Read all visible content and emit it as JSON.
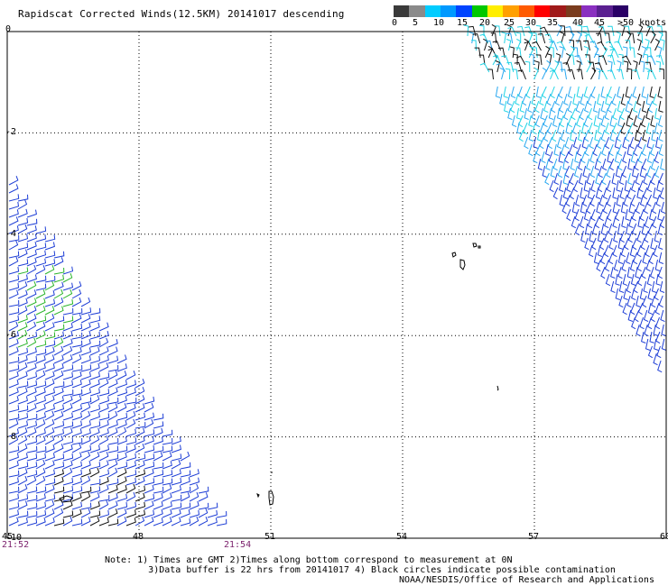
{
  "title": "Rapidscat Corrected Winds(12.5KM) 20141017 descending",
  "colorbar": {
    "labels": [
      "0",
      "5",
      "10",
      "15",
      "20",
      "25",
      "30",
      "35",
      "40",
      "45",
      ">50 knots"
    ],
    "colors": [
      "#3a3a3a",
      "#8a8a8a",
      "#00ccff",
      "#0099ff",
      "#0044ff",
      "#00c800",
      "#ffee00",
      "#ffa000",
      "#ff5a00",
      "#ff0000",
      "#a01a1a",
      "#7a3c1e",
      "#8a30c0",
      "#5a2090",
      "#2a0066"
    ]
  },
  "axes": {
    "lon_ticks": [
      "45",
      "48",
      "51",
      "54",
      "57",
      "60"
    ],
    "lat_ticks": [
      "0",
      "-2",
      "-4",
      "-6",
      "-8",
      "-10"
    ],
    "lon_range": [
      45,
      60
    ],
    "lat_range": [
      0,
      -10
    ],
    "grid": true
  },
  "times": {
    "left": "21:52",
    "mid": "21:54"
  },
  "notes": {
    "line1": "Note: 1) Times are GMT 2)Times along bottom correspond to measurement at 0N",
    "line2": "3)Data buffer is 22 hrs from 20141017 4) Black circles indicate possible contamination"
  },
  "credit": "NOAA/NESDIS/Office of Research and Applications",
  "icons": {
    "wind_barb": "wind-barb-icon",
    "island": "island-icon"
  },
  "palette": {
    "barb_blue": "#1f3fd6",
    "barb_lightblue": "#29a8f0",
    "barb_cyan": "#22d4e6",
    "barb_green": "#2bb52b",
    "barb_black": "#111111"
  }
}
